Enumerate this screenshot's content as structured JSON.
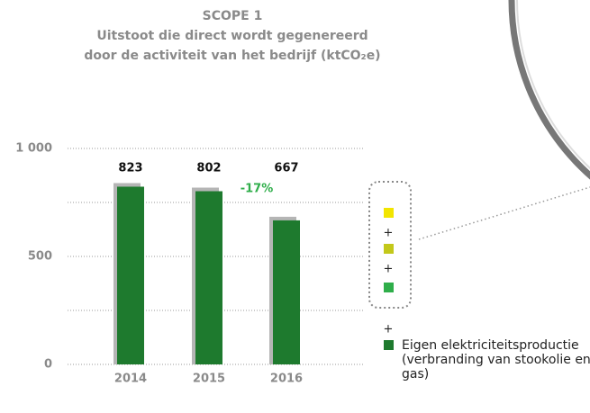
{
  "chart_data": {
    "type": "bar",
    "title": [
      "SCOPE 1",
      "Uitstoot die direct wordt gegenereerd",
      "door de activiteit van het bedrijf (ktCO₂e)"
    ],
    "categories": [
      "2014",
      "2015",
      "2016"
    ],
    "series": [
      {
        "name": "Eigen elektriciteitsproductie (verbranding van stookolie en gas)",
        "color": "#1e7a2e",
        "values": [
          823,
          802,
          667
        ]
      }
    ],
    "annotation": "-17%",
    "ylim": [
      0,
      1000
    ],
    "yticks": [
      0,
      500,
      {
        "value": 1000,
        "label": "1 000"
      }
    ],
    "yminorticks": [
      250,
      750
    ],
    "grid": true
  }
}
